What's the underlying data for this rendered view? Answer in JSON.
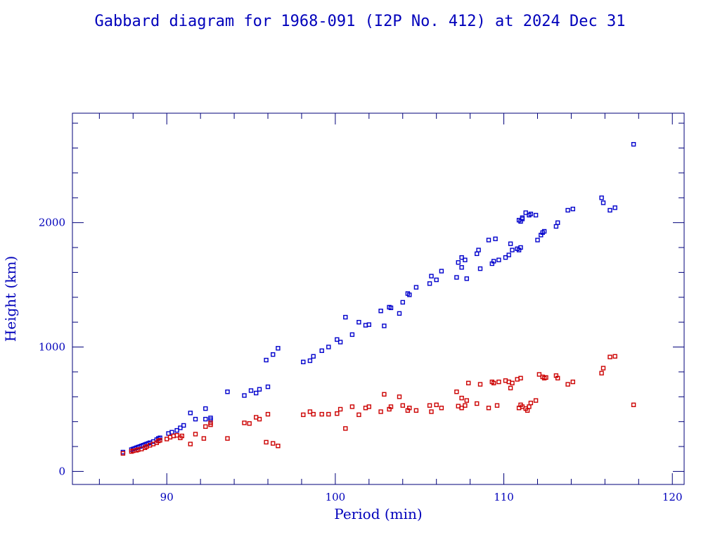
{
  "chart_data": {
    "type": "scatter",
    "title": "Gabbard diagram for 1968-091 (I2P No. 412) at 2024 Dec 31",
    "xlabel": "Period (min)",
    "ylabel": "Height (km)",
    "xlim": [
      84.4,
      120.7
    ],
    "ylim": [
      -105,
      2880
    ],
    "x_ticks": [
      90,
      100,
      110,
      120
    ],
    "y_ticks": [
      0,
      1000,
      2000
    ],
    "x_minor_step": 2,
    "y_minor_step": 200,
    "marker": "square",
    "grid": false,
    "colors": {
      "apogee": "#0000cc",
      "perigee": "#cc0000",
      "axis": "#00007a",
      "text": "#0000bb"
    },
    "series": [
      {
        "key": "apogee",
        "color": "#0000cc",
        "points": [
          [
            87.4,
            155
          ],
          [
            87.9,
            175
          ],
          [
            88.0,
            180
          ],
          [
            88.1,
            185
          ],
          [
            88.2,
            190
          ],
          [
            88.3,
            195
          ],
          [
            88.4,
            200
          ],
          [
            88.5,
            205
          ],
          [
            88.6,
            210
          ],
          [
            88.7,
            215
          ],
          [
            88.8,
            220
          ],
          [
            88.9,
            225
          ],
          [
            89.0,
            230
          ],
          [
            89.2,
            240
          ],
          [
            89.4,
            255
          ],
          [
            89.5,
            265
          ],
          [
            89.6,
            270
          ],
          [
            90.1,
            305
          ],
          [
            90.3,
            315
          ],
          [
            90.6,
            330
          ],
          [
            90.8,
            350
          ],
          [
            91.0,
            370
          ],
          [
            91.4,
            470
          ],
          [
            91.7,
            420
          ],
          [
            92.3,
            420
          ],
          [
            92.3,
            505
          ],
          [
            92.6,
            430
          ],
          [
            92.6,
            415
          ],
          [
            93.6,
            640
          ],
          [
            94.6,
            610
          ],
          [
            95.0,
            650
          ],
          [
            95.3,
            630
          ],
          [
            95.5,
            660
          ],
          [
            95.9,
            895
          ],
          [
            96.0,
            680
          ],
          [
            96.3,
            940
          ],
          [
            96.6,
            990
          ],
          [
            98.1,
            880
          ],
          [
            98.5,
            890
          ],
          [
            98.7,
            925
          ],
          [
            99.2,
            970
          ],
          [
            99.6,
            1000
          ],
          [
            100.1,
            1060
          ],
          [
            100.3,
            1040
          ],
          [
            100.6,
            1240
          ],
          [
            101.0,
            1100
          ],
          [
            101.4,
            1200
          ],
          [
            101.8,
            1175
          ],
          [
            102.0,
            1180
          ],
          [
            102.7,
            1290
          ],
          [
            102.9,
            1170
          ],
          [
            103.2,
            1320
          ],
          [
            103.3,
            1315
          ],
          [
            103.8,
            1270
          ],
          [
            104.0,
            1360
          ],
          [
            104.3,
            1430
          ],
          [
            104.4,
            1420
          ],
          [
            104.8,
            1480
          ],
          [
            105.6,
            1510
          ],
          [
            105.7,
            1570
          ],
          [
            106.0,
            1540
          ],
          [
            106.3,
            1610
          ],
          [
            107.2,
            1560
          ],
          [
            107.3,
            1680
          ],
          [
            107.5,
            1640
          ],
          [
            107.5,
            1720
          ],
          [
            107.7,
            1700
          ],
          [
            107.8,
            1550
          ],
          [
            108.4,
            1750
          ],
          [
            108.5,
            1780
          ],
          [
            108.6,
            1630
          ],
          [
            109.1,
            1860
          ],
          [
            109.3,
            1670
          ],
          [
            109.4,
            1690
          ],
          [
            109.5,
            1870
          ],
          [
            109.7,
            1700
          ],
          [
            110.1,
            1720
          ],
          [
            110.3,
            1740
          ],
          [
            110.4,
            1830
          ],
          [
            110.5,
            1780
          ],
          [
            110.8,
            1790
          ],
          [
            110.9,
            1780
          ],
          [
            110.9,
            2020
          ],
          [
            111.0,
            2010
          ],
          [
            111.0,
            1800
          ],
          [
            111.1,
            2040
          ],
          [
            111.1,
            2030
          ],
          [
            111.3,
            2080
          ],
          [
            111.5,
            2060
          ],
          [
            111.6,
            2070
          ],
          [
            111.9,
            2060
          ],
          [
            112.0,
            1860
          ],
          [
            112.2,
            1900
          ],
          [
            112.3,
            1920
          ],
          [
            112.4,
            1930
          ],
          [
            113.1,
            1970
          ],
          [
            113.2,
            2000
          ],
          [
            113.8,
            2100
          ],
          [
            114.1,
            2110
          ],
          [
            115.8,
            2200
          ],
          [
            115.9,
            2160
          ],
          [
            116.3,
            2100
          ],
          [
            116.6,
            2120
          ],
          [
            117.7,
            2630
          ]
        ]
      },
      {
        "key": "perigee",
        "color": "#cc0000",
        "points": [
          [
            87.4,
            145
          ],
          [
            87.9,
            160
          ],
          [
            88.0,
            165
          ],
          [
            88.2,
            170
          ],
          [
            88.3,
            175
          ],
          [
            88.5,
            180
          ],
          [
            88.7,
            190
          ],
          [
            88.8,
            200
          ],
          [
            89.0,
            210
          ],
          [
            89.2,
            220
          ],
          [
            89.4,
            230
          ],
          [
            89.5,
            245
          ],
          [
            89.6,
            250
          ],
          [
            90.0,
            260
          ],
          [
            90.2,
            275
          ],
          [
            90.4,
            285
          ],
          [
            90.6,
            290
          ],
          [
            90.8,
            270
          ],
          [
            90.9,
            285
          ],
          [
            91.4,
            220
          ],
          [
            91.7,
            300
          ],
          [
            92.2,
            265
          ],
          [
            92.3,
            360
          ],
          [
            92.6,
            375
          ],
          [
            92.6,
            390
          ],
          [
            93.6,
            265
          ],
          [
            94.6,
            390
          ],
          [
            94.9,
            385
          ],
          [
            95.3,
            435
          ],
          [
            95.5,
            420
          ],
          [
            95.9,
            235
          ],
          [
            96.0,
            460
          ],
          [
            96.3,
            225
          ],
          [
            96.6,
            205
          ],
          [
            98.1,
            455
          ],
          [
            98.5,
            480
          ],
          [
            98.7,
            460
          ],
          [
            99.2,
            460
          ],
          [
            99.6,
            460
          ],
          [
            100.1,
            465
          ],
          [
            100.3,
            500
          ],
          [
            100.6,
            345
          ],
          [
            101.0,
            520
          ],
          [
            101.4,
            455
          ],
          [
            101.8,
            510
          ],
          [
            102.0,
            520
          ],
          [
            102.7,
            480
          ],
          [
            102.9,
            620
          ],
          [
            103.2,
            500
          ],
          [
            103.3,
            520
          ],
          [
            103.8,
            600
          ],
          [
            104.0,
            530
          ],
          [
            104.3,
            490
          ],
          [
            104.4,
            510
          ],
          [
            104.8,
            490
          ],
          [
            105.6,
            530
          ],
          [
            105.7,
            480
          ],
          [
            106.0,
            535
          ],
          [
            106.3,
            510
          ],
          [
            107.2,
            640
          ],
          [
            107.3,
            525
          ],
          [
            107.5,
            510
          ],
          [
            107.5,
            590
          ],
          [
            107.7,
            530
          ],
          [
            107.8,
            570
          ],
          [
            107.9,
            710
          ],
          [
            108.4,
            545
          ],
          [
            108.6,
            700
          ],
          [
            109.1,
            510
          ],
          [
            109.3,
            720
          ],
          [
            109.4,
            710
          ],
          [
            109.6,
            530
          ],
          [
            109.7,
            720
          ],
          [
            110.1,
            730
          ],
          [
            110.3,
            720
          ],
          [
            110.4,
            670
          ],
          [
            110.5,
            710
          ],
          [
            110.8,
            740
          ],
          [
            110.9,
            510
          ],
          [
            111.0,
            535
          ],
          [
            111.0,
            750
          ],
          [
            111.1,
            520
          ],
          [
            111.3,
            505
          ],
          [
            111.4,
            490
          ],
          [
            111.5,
            520
          ],
          [
            111.6,
            550
          ],
          [
            111.9,
            570
          ],
          [
            112.1,
            780
          ],
          [
            112.3,
            760
          ],
          [
            112.4,
            750
          ],
          [
            112.5,
            755
          ],
          [
            113.1,
            770
          ],
          [
            113.2,
            750
          ],
          [
            113.8,
            700
          ],
          [
            114.1,
            720
          ],
          [
            115.8,
            790
          ],
          [
            115.9,
            830
          ],
          [
            116.3,
            920
          ],
          [
            116.6,
            925
          ],
          [
            117.7,
            535
          ]
        ]
      }
    ]
  }
}
